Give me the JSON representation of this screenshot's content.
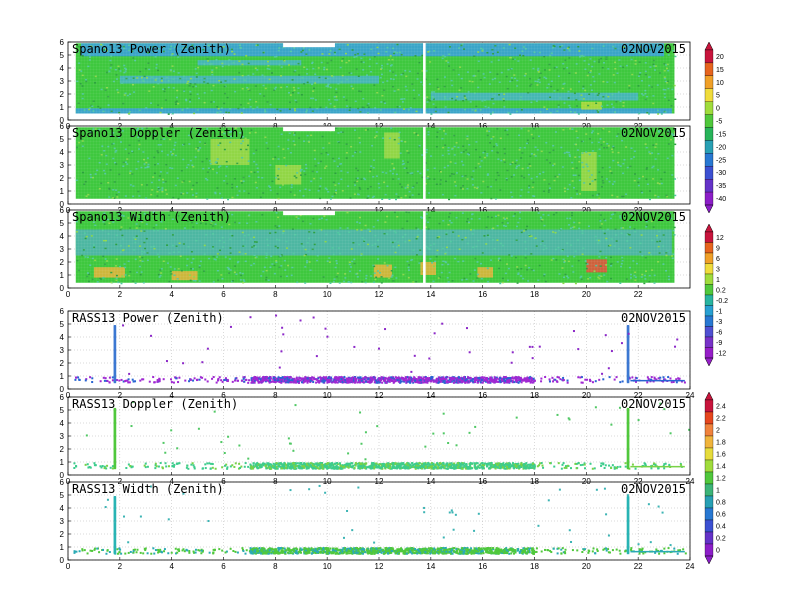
{
  "chart_data": [
    {
      "type": "heatmap",
      "title": "Spano13 Power (Zenith)",
      "date": "02NOV2015",
      "xlim": [
        0,
        24
      ],
      "ylim": [
        0,
        6
      ],
      "x_ticks": [
        0,
        2,
        4,
        6,
        8,
        10,
        12,
        14,
        16,
        18,
        20,
        22
      ],
      "y_ticks": [
        0,
        1,
        2,
        3,
        4,
        5,
        6
      ],
      "fill": {
        "y_bottom": 0.5,
        "y_top": 5.9,
        "x_end": 23.4
      },
      "background": "#3ec83e",
      "blobs": [
        {
          "x": [
            0.3,
            23.3
          ],
          "y": [
            0.5,
            0.9
          ],
          "color": "#3a9fe0"
        },
        {
          "x": [
            0.5,
            23
          ],
          "y": [
            4.9,
            5.9
          ],
          "color": "#3a9fe0"
        },
        {
          "x": [
            2,
            12
          ],
          "y": [
            2.8,
            3.4
          ],
          "color": "#46b4c8"
        },
        {
          "x": [
            14,
            22
          ],
          "y": [
            1.5,
            2.1
          ],
          "color": "#46b4c8"
        },
        {
          "x": [
            5,
            9
          ],
          "y": [
            4.2,
            4.6
          ],
          "color": "#46b4c8"
        },
        {
          "x": [
            19.8,
            20.6
          ],
          "y": [
            0.8,
            1.4
          ],
          "color": "#b4dc3c"
        }
      ],
      "gaps": [
        {
          "x": [
            8.3,
            10.3
          ],
          "y": [
            5.6,
            6.0
          ]
        },
        {
          "x": [
            13.7,
            13.8
          ],
          "y": [
            0,
            6
          ]
        }
      ],
      "colorbar": {
        "labels": [
          "20",
          "15",
          "10",
          "5",
          "0",
          "-5",
          "-15",
          "-20",
          "-25",
          "-30",
          "-35",
          "-40"
        ],
        "colors": [
          "#c8143c",
          "#e6641e",
          "#f0a028",
          "#f0dc3c",
          "#a0dc3c",
          "#50c83c",
          "#28b45a",
          "#28a0b4",
          "#2878d2",
          "#3c50d2",
          "#6432c8",
          "#8c1ec8"
        ]
      }
    },
    {
      "type": "heatmap",
      "title": "Spano13 Doppler (Zenith)",
      "date": "02NOV2015",
      "xlim": [
        0,
        24
      ],
      "ylim": [
        0,
        6
      ],
      "x_ticks": [
        0,
        2,
        4,
        6,
        8,
        10,
        12,
        14,
        16,
        18,
        20,
        22
      ],
      "y_ticks": [
        0,
        1,
        2,
        3,
        4,
        5,
        6
      ],
      "fill": {
        "y_bottom": 0.4,
        "y_top": 5.9,
        "x_end": 23.4
      },
      "background": "#3ec83e",
      "blobs": [
        {
          "x": [
            5.5,
            7
          ],
          "y": [
            3,
            5
          ],
          "color": "#a0d848"
        },
        {
          "x": [
            12.2,
            12.8
          ],
          "y": [
            3.5,
            5.5
          ],
          "color": "#a0d848"
        },
        {
          "x": [
            19.8,
            20.4
          ],
          "y": [
            1,
            4
          ],
          "color": "#a0d848"
        },
        {
          "x": [
            8,
            9
          ],
          "y": [
            1.5,
            3
          ],
          "color": "#a0d848"
        }
      ],
      "gaps": [
        {
          "x": [
            8.3,
            10.3
          ],
          "y": [
            5.6,
            6.0
          ]
        },
        {
          "x": [
            13.7,
            13.8
          ],
          "y": [
            0,
            6
          ]
        }
      ],
      "colorbar": null
    },
    {
      "type": "heatmap",
      "title": "Spano13 Width (Zenith)",
      "date": "02NOV2015",
      "xlim": [
        0,
        24
      ],
      "ylim": [
        0,
        6
      ],
      "x_ticks": [
        0,
        2,
        4,
        6,
        8,
        10,
        12,
        14,
        16,
        18,
        20,
        22
      ],
      "y_ticks": [
        0,
        1,
        2,
        3,
        4,
        5,
        6
      ],
      "fill": {
        "y_bottom": 0.4,
        "y_top": 5.9,
        "x_end": 23.4
      },
      "background": "#3ec83e",
      "blobs": [
        {
          "x": [
            0.3,
            23.3
          ],
          "y": [
            2.5,
            4.5
          ],
          "color": "#50b4b4"
        },
        {
          "x": [
            1,
            2.2
          ],
          "y": [
            0.8,
            1.6
          ],
          "color": "#e6b43c"
        },
        {
          "x": [
            4,
            5
          ],
          "y": [
            0.6,
            1.3
          ],
          "color": "#e6b43c"
        },
        {
          "x": [
            11.8,
            12.5
          ],
          "y": [
            0.8,
            1.8
          ],
          "color": "#e6b43c"
        },
        {
          "x": [
            13.6,
            14.2
          ],
          "y": [
            1.0,
            2.0
          ],
          "color": "#e6b43c"
        },
        {
          "x": [
            15.8,
            16.4
          ],
          "y": [
            0.8,
            1.6
          ],
          "color": "#e6b43c"
        },
        {
          "x": [
            20,
            20.8
          ],
          "y": [
            1.2,
            2.2
          ],
          "color": "#e6503c"
        }
      ],
      "gaps": [
        {
          "x": [
            8.3,
            10.3
          ],
          "y": [
            5.6,
            6.0
          ]
        },
        {
          "x": [
            13.7,
            13.8
          ],
          "y": [
            0,
            6
          ]
        }
      ],
      "colorbar": {
        "labels": [
          "12",
          "9",
          "6",
          "3",
          "1",
          "0.2",
          "-0.2",
          "-1",
          "-3",
          "-6",
          "-9",
          "-12"
        ],
        "colors": [
          "#c8143c",
          "#e6641e",
          "#f0a028",
          "#f0dc3c",
          "#a0dc3c",
          "#50c83c",
          "#28b4a0",
          "#28a0d2",
          "#2878d2",
          "#5050d2",
          "#7832c8",
          "#961ec8"
        ]
      }
    },
    {
      "type": "scatter",
      "title": "RASS13 Power (Zenith)",
      "date": "02NOV2015",
      "xlim": [
        0,
        24
      ],
      "ylim": [
        0,
        6
      ],
      "x_ticks": [
        0,
        2,
        4,
        6,
        8,
        10,
        12,
        14,
        16,
        18,
        20,
        22,
        24
      ],
      "y_ticks": [
        0,
        1,
        2,
        3,
        4,
        5,
        6
      ],
      "band": {
        "x": [
          0.2,
          23.8
        ],
        "y": [
          0.55,
          1.0
        ],
        "dense_x": [
          7,
          18
        ],
        "color": "#a028d2",
        "alt_color": "#2864d2"
      },
      "columns": [
        {
          "x": 1.8,
          "y": [
            0.6,
            5.0
          ],
          "color": "#3c78d2"
        },
        {
          "x": 21.6,
          "y": [
            0.6,
            5.0
          ],
          "color": "#3c78d2"
        }
      ],
      "sparse_color": "#8c28c8",
      "colorbar": null
    },
    {
      "type": "scatter",
      "title": "RASS13 Doppler (Zenith)",
      "date": "02NOV2015",
      "xlim": [
        0,
        24
      ],
      "ylim": [
        0,
        6
      ],
      "x_ticks": [
        0,
        2,
        4,
        6,
        8,
        10,
        12,
        14,
        16,
        18,
        20,
        22,
        24
      ],
      "y_ticks": [
        0,
        1,
        2,
        3,
        4,
        5,
        6
      ],
      "band": {
        "x": [
          0.2,
          23.8
        ],
        "y": [
          0.55,
          1.0
        ],
        "dense_x": [
          7,
          18
        ],
        "color": "#3ccc8c",
        "alt_color": "#78d246"
      },
      "columns": [
        {
          "x": 1.8,
          "y": [
            0.6,
            5.2
          ],
          "color": "#50c83c"
        },
        {
          "x": 21.6,
          "y": [
            0.6,
            5.2
          ],
          "color": "#50c83c"
        }
      ],
      "sparse_color": "#50c864",
      "colorbar": {
        "labels": [
          "2.4",
          "2.2",
          "2",
          "1.8",
          "1.6",
          "1.4",
          "1.2",
          "1",
          "0.8",
          "0.6",
          "0.4",
          "0.2",
          "0"
        ],
        "colors": [
          "#c8143c",
          "#e6461e",
          "#f0823c",
          "#f0b43c",
          "#e6dc3c",
          "#a0dc3c",
          "#50c83c",
          "#3cb478",
          "#28a0b4",
          "#2878d2",
          "#3c50d2",
          "#6432c8",
          "#8c1ec8"
        ]
      }
    },
    {
      "type": "scatter",
      "title": "RASS13 Width (Zenith)",
      "date": "02NOV2015",
      "xlim": [
        0,
        24
      ],
      "ylim": [
        0,
        6
      ],
      "x_ticks": [
        0,
        2,
        4,
        6,
        8,
        10,
        12,
        14,
        16,
        18,
        20,
        22,
        24
      ],
      "y_ticks": [
        0,
        1,
        2,
        3,
        4,
        5,
        6
      ],
      "band": {
        "x": [
          0.2,
          23.8
        ],
        "y": [
          0.55,
          1.0
        ],
        "dense_x": [
          7,
          18
        ],
        "color": "#50c83c",
        "alt_color": "#2aaab4"
      },
      "columns": [
        {
          "x": 1.8,
          "y": [
            0.6,
            5.0
          ],
          "color": "#28b4b4"
        },
        {
          "x": 21.6,
          "y": [
            0.6,
            5.0
          ],
          "color": "#28b4b4"
        }
      ],
      "sparse_color": "#3cb4b4",
      "colorbar": null
    }
  ]
}
